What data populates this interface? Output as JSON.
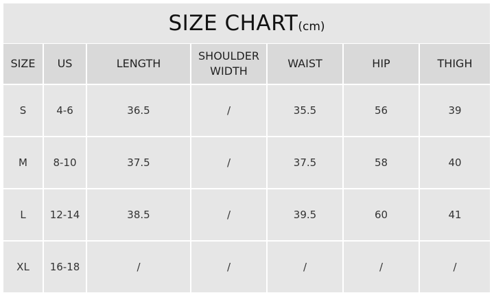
{
  "title": {
    "main": "SIZE CHART",
    "unit": "(cm)"
  },
  "headers": [
    "SIZE",
    "US",
    "LENGTH",
    "SHOULDER WIDTH",
    "WAIST",
    "HIP",
    "THIGH"
  ],
  "rows": [
    [
      "S",
      "4-6",
      "36.5",
      "/",
      "35.5",
      "56",
      "39"
    ],
    [
      "M",
      "8-10",
      "37.5",
      "/",
      "37.5",
      "58",
      "40"
    ],
    [
      "L",
      "12-14",
      "38.5",
      "/",
      "39.5",
      "60",
      "41"
    ],
    [
      "XL",
      "16-18",
      "/",
      "/",
      "/",
      "/",
      "/"
    ]
  ],
  "colors": {
    "title_bg": "#e6e6e6",
    "header_bg": "#d9d9d9",
    "cell_bg": "#e6e6e6",
    "grid": "#ffffff"
  }
}
